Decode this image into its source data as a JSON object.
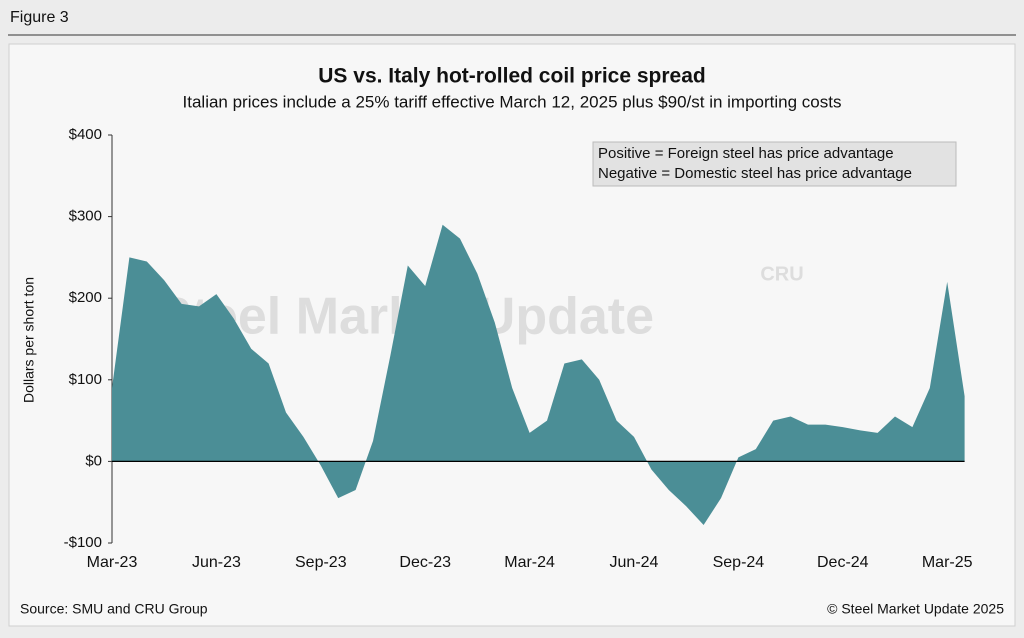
{
  "figure_label": "Figure 3",
  "chart_data": {
    "type": "area",
    "title": "US vs. Italy hot-rolled coil price spread",
    "subtitle": "Italian prices include a 25% tariff effective March 12, 2025 plus $90/st in importing costs",
    "y_label": "Dollars per short ton",
    "annotations": [
      "Positive = Foreign steel has price advantage",
      "Negative = Domestic steel has price advantage"
    ],
    "watermark": [
      "Steel Market Update",
      "CRU"
    ],
    "categories": [
      "Mar-23",
      null,
      null,
      null,
      null,
      null,
      "Jun-23",
      null,
      null,
      null,
      null,
      null,
      "Sep-23",
      null,
      null,
      null,
      null,
      null,
      "Dec-23",
      null,
      null,
      null,
      null,
      null,
      "Mar-24",
      null,
      null,
      null,
      null,
      null,
      "Jun-24",
      null,
      null,
      null,
      null,
      null,
      "Sep-24",
      null,
      null,
      null,
      null,
      null,
      "Dec-24",
      null,
      null,
      null,
      null,
      null,
      "Mar-25",
      null
    ],
    "values": [
      90,
      250,
      245,
      222,
      193,
      190,
      205,
      175,
      138,
      120,
      60,
      30,
      -5,
      -45,
      -35,
      25,
      130,
      240,
      215,
      290,
      273,
      230,
      170,
      90,
      35,
      50,
      120,
      125,
      100,
      50,
      30,
      -10,
      -35,
      -55,
      -78,
      -45,
      5,
      15,
      50,
      55,
      45,
      45,
      42,
      38,
      35,
      55,
      42,
      90,
      220,
      80
    ],
    "color": "#4b8e96",
    "ylim": [
      -100,
      400
    ],
    "yticks": [
      {
        "value": -100,
        "label": "-$100"
      },
      {
        "value": 0,
        "label": "$0"
      },
      {
        "value": 100,
        "label": "$100"
      },
      {
        "value": 200,
        "label": "$200"
      },
      {
        "value": 300,
        "label": "$300"
      },
      {
        "value": 400,
        "label": "$400"
      }
    ],
    "grid": false,
    "source": "Source: SMU and CRU Group",
    "copyright": "© Steel Market Update 2025"
  }
}
